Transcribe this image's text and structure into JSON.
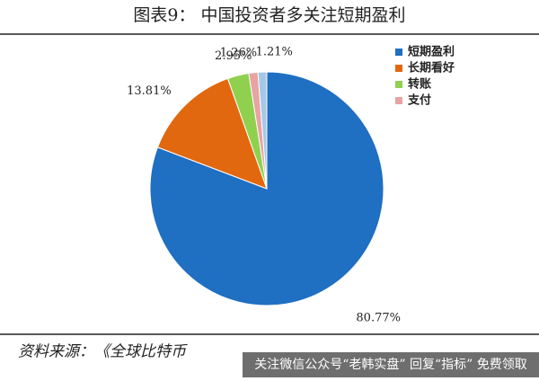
{
  "chart_data": {
    "type": "pie",
    "title": "图表9：  中国投资者多关注短期盈利",
    "categories": [
      "短期盈利",
      "长期看好",
      "转账",
      "支付",
      null
    ],
    "values": [
      80.77,
      13.81,
      2.95,
      1.26,
      1.21
    ],
    "value_labels": [
      "80.77%",
      "13.81%",
      "2.95%",
      "1.26%",
      "1.21%"
    ],
    "colors": [
      "#1f6fc2",
      "#e2680f",
      "#8fd14f",
      "#e8a3a3",
      "#a6c8e8"
    ],
    "legend": "top-right"
  },
  "source": "资料来源：《全球比特币",
  "watermark": "关注微信公众号“老韩实盘” 回复“指标” 免费领取"
}
